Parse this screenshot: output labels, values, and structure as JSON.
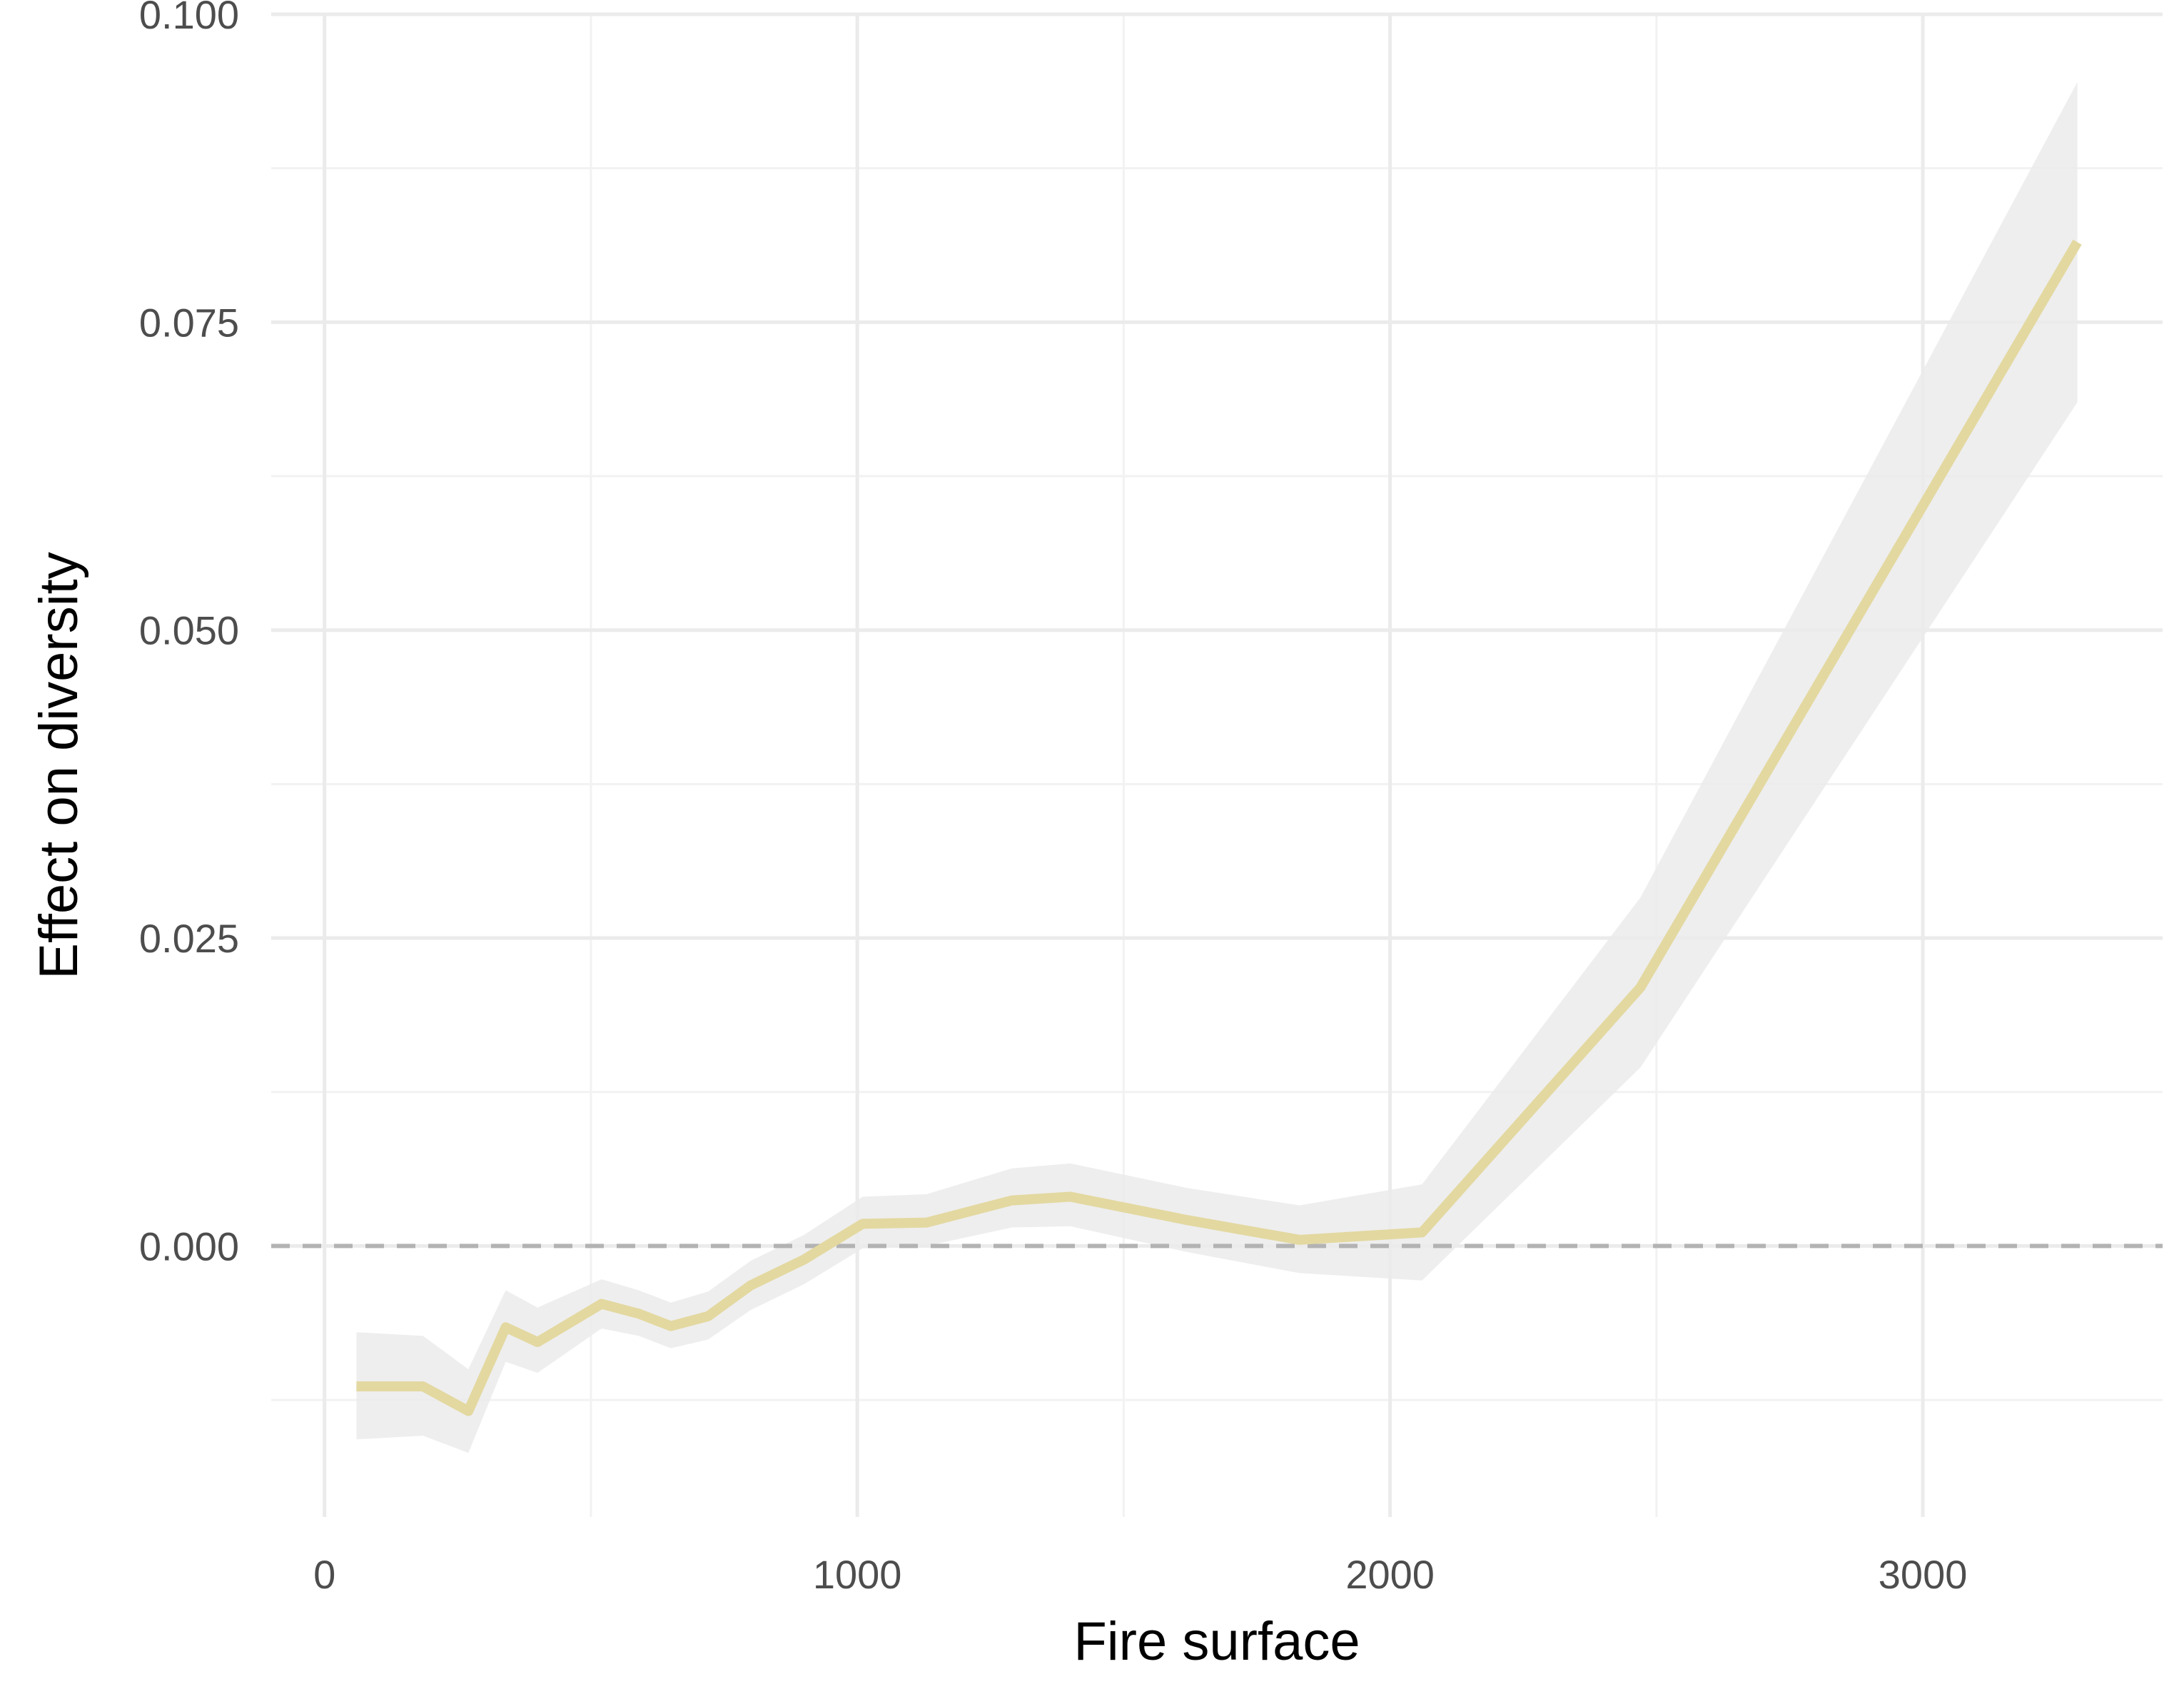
{
  "chart_data": {
    "type": "line",
    "xlabel": "Fire surface",
    "ylabel": "Effect on diversity",
    "xlim": [
      -100,
      3450
    ],
    "ylim": [
      -0.022,
      0.1
    ],
    "x_ticks": [
      0,
      1000,
      2000,
      3000
    ],
    "x_tick_labels": [
      "0",
      "1000",
      "2000",
      "3000"
    ],
    "y_ticks": [
      0.0,
      0.025,
      0.05,
      0.075,
      0.1
    ],
    "y_tick_labels": [
      "0.000",
      "0.025",
      "0.050",
      "0.075",
      "0.100"
    ],
    "grid": true,
    "reference_line": {
      "y": 0,
      "style": "dashed"
    },
    "series": [
      {
        "x": [
          60,
          185,
          270,
          340,
          400,
          520,
          590,
          650,
          720,
          800,
          900,
          1010,
          1130,
          1290,
          1400,
          1620,
          1830,
          2060,
          2470,
          3290
        ],
        "y": [
          -0.0114,
          -0.0114,
          -0.0134,
          -0.0066,
          -0.0078,
          -0.0047,
          -0.0055,
          -0.0065,
          -0.0057,
          -0.0032,
          -0.0011,
          0.0018,
          0.0019,
          0.0037,
          0.004,
          0.0021,
          0.0005,
          0.0011,
          0.021,
          0.0815
        ],
        "lower": [
          -0.0157,
          -0.0154,
          -0.0168,
          -0.0094,
          -0.0103,
          -0.0067,
          -0.0073,
          -0.0083,
          -0.0076,
          -0.0052,
          -0.0031,
          -0.0002,
          0.0,
          0.0015,
          0.0016,
          -0.0005,
          -0.0022,
          -0.0028,
          0.0145,
          0.0685
        ],
        "upper": [
          -0.007,
          -0.0073,
          -0.01,
          -0.0036,
          -0.005,
          -0.0027,
          -0.0036,
          -0.0046,
          -0.0037,
          -0.0012,
          0.0009,
          0.004,
          0.0042,
          0.0063,
          0.0067,
          0.0047,
          0.0033,
          0.005,
          0.0283,
          0.0945
        ]
      }
    ],
    "colors": {
      "line": "#e3d8a0",
      "band": "#ebebeb",
      "grid_major": "#ebebeb",
      "grid_minor": "#f2f2f2",
      "reference": "#b3b3b3"
    }
  }
}
